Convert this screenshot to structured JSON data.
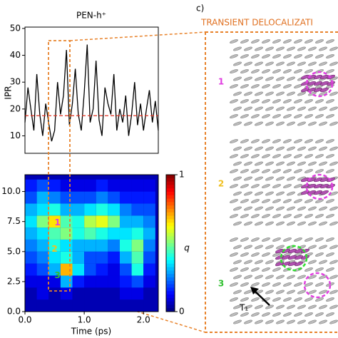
{
  "chart_data": [
    {
      "type": "line",
      "title": "PEN-h⁺",
      "ylabel": "IPR",
      "x": [
        0,
        0.05,
        0.1,
        0.15,
        0.2,
        0.25,
        0.3,
        0.35,
        0.4,
        0.45,
        0.5,
        0.55,
        0.6,
        0.65,
        0.7,
        0.75,
        0.8,
        0.85,
        0.9,
        0.95,
        1.0,
        1.05,
        1.1,
        1.15,
        1.2,
        1.25,
        1.3,
        1.35,
        1.4,
        1.45,
        1.5,
        1.55,
        1.6,
        1.65,
        1.7,
        1.75,
        1.8,
        1.85,
        1.9,
        1.95,
        2.0,
        2.05,
        2.1,
        2.15,
        2.2,
        2.25
      ],
      "series": [
        {
          "color": "#000000",
          "values": [
            15,
            28,
            20,
            12,
            33,
            18,
            10,
            22,
            15,
            8,
            12,
            30,
            18,
            25,
            42,
            14,
            22,
            35,
            18,
            12,
            26,
            44,
            15,
            20,
            38,
            16,
            10,
            28,
            22,
            18,
            33,
            12,
            20,
            15,
            25,
            10,
            18,
            30,
            14,
            22,
            12,
            20,
            27,
            15,
            23,
            12
          ]
        }
      ],
      "hline": {
        "value": 17.5,
        "color": "#e03020"
      },
      "xlim": [
        0,
        2.25
      ],
      "ylim": [
        3.5,
        50.5
      ],
      "yticks": [
        10,
        20,
        30,
        40,
        50
      ]
    },
    {
      "type": "heatmap",
      "xlabel": "Time (ps)",
      "x": [
        0.1,
        0.3,
        0.5,
        0.7,
        0.9,
        1.1,
        1.3,
        1.5,
        1.7,
        1.9,
        2.1
      ],
      "y": [
        0.5,
        1.5,
        2.5,
        3.5,
        4.5,
        5.5,
        6.5,
        7.5,
        8.5,
        9.5,
        10.5
      ],
      "z": [
        [
          0.05,
          0.05,
          0.05,
          0.05,
          0.05,
          0.05,
          0.05,
          0.05,
          0.05,
          0.05,
          0.05
        ],
        [
          0.05,
          0.1,
          0.05,
          0.1,
          0.05,
          0.05,
          0.05,
          0.05,
          0.1,
          0.1,
          0.05
        ],
        [
          0.1,
          0.1,
          0.1,
          0.3,
          0.15,
          0.1,
          0.1,
          0.1,
          0.15,
          0.2,
          0.1
        ],
        [
          0.15,
          0.2,
          0.3,
          0.7,
          0.35,
          0.2,
          0.15,
          0.1,
          0.2,
          0.4,
          0.15
        ],
        [
          0.2,
          0.25,
          0.35,
          0.4,
          0.3,
          0.2,
          0.2,
          0.15,
          0.3,
          0.45,
          0.2
        ],
        [
          0.25,
          0.3,
          0.4,
          0.35,
          0.3,
          0.3,
          0.3,
          0.25,
          0.4,
          0.5,
          0.25
        ],
        [
          0.3,
          0.35,
          0.45,
          0.5,
          0.4,
          0.45,
          0.4,
          0.35,
          0.35,
          0.4,
          0.3
        ],
        [
          0.35,
          0.5,
          0.65,
          0.45,
          0.4,
          0.55,
          0.6,
          0.5,
          0.3,
          0.3,
          0.25
        ],
        [
          0.3,
          0.35,
          0.4,
          0.3,
          0.3,
          0.35,
          0.4,
          0.35,
          0.25,
          0.2,
          0.2
        ],
        [
          0.2,
          0.3,
          0.25,
          0.2,
          0.2,
          0.2,
          0.25,
          0.2,
          0.15,
          0.15,
          0.15
        ],
        [
          0.15,
          0.2,
          0.15,
          0.1,
          0.1,
          0.1,
          0.15,
          0.1,
          0.1,
          0.1,
          0.1
        ]
      ],
      "xlim": [
        0,
        2.25
      ],
      "ylim": [
        0,
        11.4
      ],
      "xticks": [
        {
          "value": 0,
          "label": "0.0"
        },
        {
          "value": 1,
          "label": "1.0"
        },
        {
          "value": 2,
          "label": "2.0"
        }
      ],
      "yticks": [
        {
          "value": 0,
          "label": "0.0"
        },
        2.5,
        {
          "value": 5,
          "label": "5.0"
        },
        7.5,
        {
          "value": 10,
          "label": "10.0"
        }
      ],
      "clim": [
        0,
        1
      ],
      "cticks": [
        0,
        1
      ],
      "clabel": "q",
      "annotations": [
        {
          "text": "1",
          "x": 0.55,
          "y": 7.4,
          "color": "#e03ee0"
        },
        {
          "text": "2",
          "x": 0.5,
          "y": 5.2,
          "color": "#f0c020"
        },
        {
          "text": "3",
          "x": 0.55,
          "y": 3.0,
          "color": "#30c030"
        }
      ]
    }
  ],
  "panel_c": {
    "label": "c)",
    "title": "TRANSIENT DELOCALIZATI",
    "snapshots": [
      {
        "text": "1",
        "color": "#e03ee0"
      },
      {
        "text": "2",
        "color": "#f0c020"
      },
      {
        "text": "3",
        "color": "#30c030"
      }
    ],
    "annotation": "T₁"
  }
}
